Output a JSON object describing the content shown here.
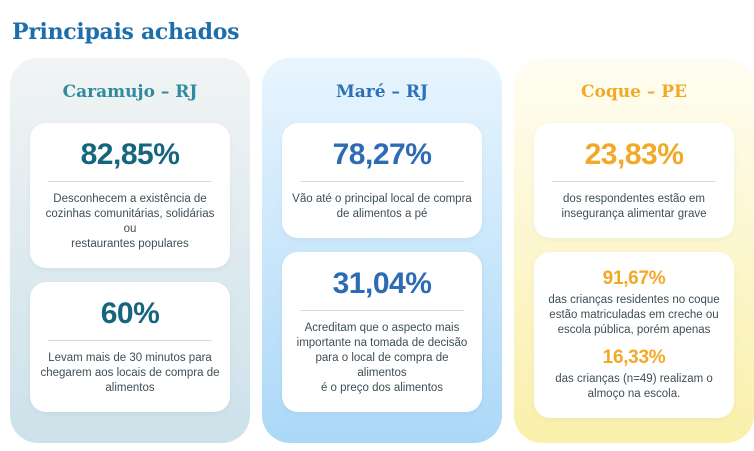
{
  "page_title": "Principais achados",
  "colors": {
    "page_background": "#FFFFFF",
    "title": "#1E6EAC",
    "body_text": "#3F4E57",
    "divider": "#D9D9D9",
    "box_background": "#FFFFFF"
  },
  "cards": [
    {
      "header": "Caramujo – RJ",
      "colors": {
        "header": "#2E8C9E",
        "stat": "#16657E",
        "gradient_top": "#F1F4F4",
        "gradient_bottom": "#CCE1EA"
      },
      "boxes": [
        {
          "stat": "82,85%",
          "lines": [
            "Desconhecem a existência de",
            "cozinhas comunitárias, solidárias ou",
            "restaurantes populares"
          ]
        },
        {
          "stat": "60%",
          "lines": [
            "Levam mais de 30 minutos para",
            "chegarem aos locais de compra de",
            "alimentos"
          ]
        }
      ]
    },
    {
      "header": "Maré – RJ",
      "colors": {
        "header": "#2D70B8",
        "stat": "#2D6CB4",
        "gradient_top": "#E9F5FE",
        "gradient_bottom": "#ABD8F8"
      },
      "boxes": [
        {
          "stat": "78,27%",
          "lines": [
            "Vão até o principal local de compra",
            "de alimentos a pé"
          ]
        },
        {
          "stat": "31,04%",
          "lines": [
            "Acreditam que o aspecto mais",
            "importante na tomada de decisão",
            "para o local de compra de alimentos",
            "é o preço dos alimentos"
          ]
        }
      ]
    },
    {
      "header": "Coque – PE",
      "colors": {
        "header": "#F2A928",
        "stat": "#F2A928",
        "gradient_top": "#FFFDF2",
        "gradient_bottom": "#F9F0AA"
      },
      "boxes": [
        {
          "stat": "23,83%",
          "lines": [
            "dos respondentes estão em",
            "insegurança alimentar grave"
          ]
        }
      ],
      "double_box": {
        "stat1": "91,67%",
        "lines1": [
          "das crianças residentes no coque",
          "estão matriculadas em creche ou",
          "escola pública, porém apenas"
        ],
        "stat2": "16,33%",
        "lines2": [
          "das crianças (n=49) realizam o",
          "almoço na escola."
        ]
      }
    }
  ]
}
